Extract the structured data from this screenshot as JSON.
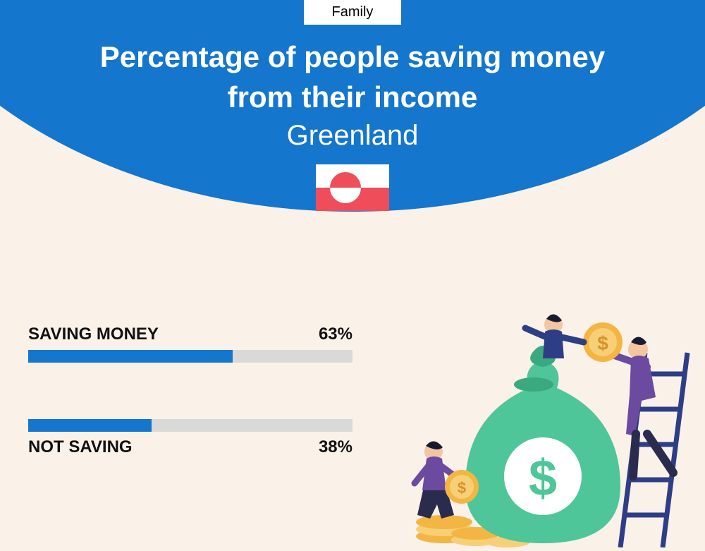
{
  "category_label": "Family",
  "title_line1": "Percentage of people saving money",
  "title_line2": "from their income",
  "subtitle": "Greenland",
  "colors": {
    "primary": "#1476cc",
    "background": "#faf1e9",
    "bar_track": "#d9d9d9",
    "bar_fill": "#1476cc",
    "flag_red": "#ef4d5a",
    "coin_gold": "#f3b643",
    "coin_gold_light": "#f7cf76",
    "bag_green": "#4fc59a",
    "bag_dark": "#3aa980",
    "person_purple": "#6b4aa0",
    "person_blue": "#2e3e86",
    "ladder": "#2e3e86"
  },
  "bars": [
    {
      "label": "SAVING MONEY",
      "value_text": "63%",
      "percent": 63,
      "label_position": "top"
    },
    {
      "label": "NOT SAVING",
      "value_text": "38%",
      "percent": 38,
      "label_position": "bottom"
    }
  ],
  "typography": {
    "title_fontsize": 42,
    "title_weight": 800,
    "subtitle_fontsize": 40,
    "subtitle_weight": 400,
    "label_fontsize": 24,
    "label_weight": 800
  }
}
